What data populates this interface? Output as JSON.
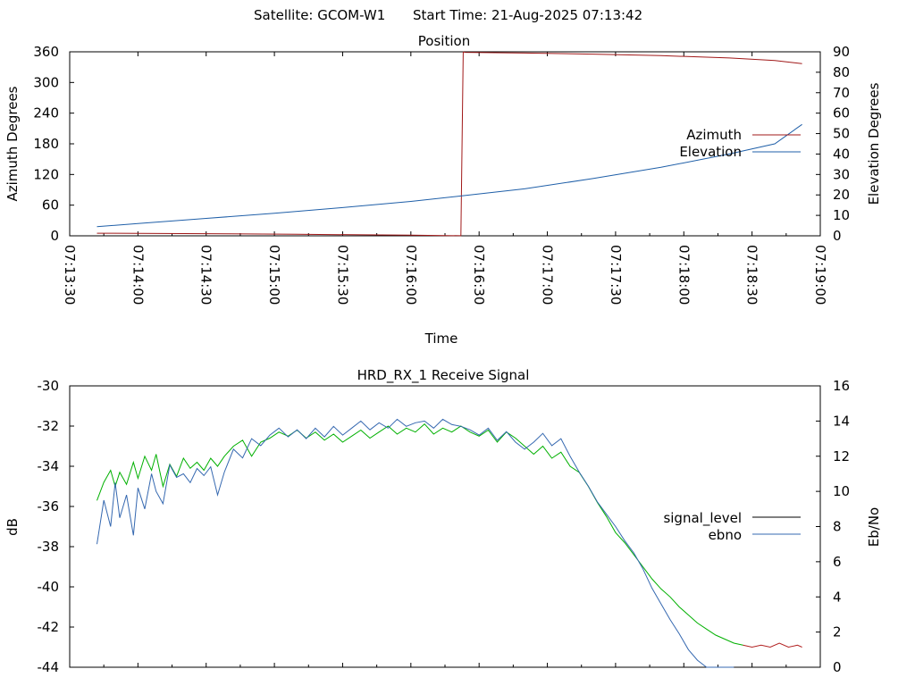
{
  "header": {
    "satellite": "Satellite: GCOM-W1",
    "start_time": "Start Time: 21-Aug-2025 07:13:42"
  },
  "colors": {
    "azimuth": "#a01818",
    "elevation": "#1f5fa8",
    "signal_level": "#b22222",
    "ebno_green": "#00b000",
    "ebno_blue": "#3568b0",
    "axis": "#000000"
  },
  "chart_data": [
    {
      "type": "line",
      "title": "Position",
      "xlabel": "Time",
      "ylabel": "Azimuth Degrees",
      "y2label": "Elevation Degrees",
      "x_unit": "time of day (seconds since 07:13:30)",
      "xlim": [
        0,
        330
      ],
      "ylim": [
        0,
        360
      ],
      "y2lim": [
        0,
        90
      ],
      "x_tick_labels": [
        "07:13:30",
        "07:14:00",
        "07:14:30",
        "07:15:00",
        "07:15:30",
        "07:16:00",
        "07:16:30",
        "07:17:00",
        "07:17:30",
        "07:18:00",
        "07:18:30",
        "07:19:00"
      ],
      "y_tick_labels": [
        "0",
        "60",
        "120",
        "180",
        "240",
        "300",
        "360"
      ],
      "y2_tick_labels": [
        "0",
        "10",
        "20",
        "30",
        "40",
        "50",
        "60",
        "70",
        "80",
        "90"
      ],
      "legend_position": "right",
      "series": [
        {
          "name": "Azimuth",
          "axis": "y",
          "x": [
            12,
            40,
            70,
            100,
            130,
            150,
            165,
            172,
            173,
            174,
            200,
            230,
            260,
            290,
            310,
            322
          ],
          "values": [
            5.0,
            4.5,
            3.8,
            3.0,
            2.0,
            1.2,
            0.5,
            0.1,
            359.5,
            359.0,
            357.5,
            355.5,
            352.5,
            348.0,
            343.0,
            337.0
          ]
        },
        {
          "name": "Elevation",
          "axis": "y2",
          "x": [
            12,
            30,
            60,
            90,
            120,
            150,
            172,
            200,
            230,
            260,
            290,
            310,
            322
          ],
          "values": [
            4.5,
            6.0,
            8.5,
            11.0,
            13.8,
            16.8,
            19.5,
            23.0,
            28.0,
            33.5,
            40.0,
            45.0,
            54.5
          ]
        }
      ]
    },
    {
      "type": "line",
      "title": "HRD_RX_1 Receive Signal",
      "ylabel": "dB",
      "y2label": "Eb/No",
      "xlim": [
        0,
        330
      ],
      "ylim": [
        -44,
        -30
      ],
      "y2lim": [
        0,
        16
      ],
      "y_tick_labels": [
        "-30",
        "-32",
        "-34",
        "-36",
        "-38",
        "-40",
        "-42",
        "-44"
      ],
      "y2_tick_labels": [
        "0",
        "2",
        "4",
        "6",
        "8",
        "10",
        "12",
        "14",
        "16"
      ],
      "legend_position": "right",
      "series": [
        {
          "name": "signal_level",
          "axis": "y",
          "x": [
            12,
            15,
            18,
            20,
            22,
            25,
            28,
            30,
            33,
            36,
            38,
            41,
            44,
            47,
            50,
            53,
            56,
            59,
            62,
            65,
            68,
            72,
            76,
            80,
            84,
            88,
            92,
            96,
            100,
            104,
            108,
            112,
            116,
            120,
            124,
            128,
            132,
            136,
            140,
            144,
            148,
            152,
            156,
            160,
            164,
            168,
            172,
            176,
            180,
            184,
            188,
            192,
            196,
            200,
            204,
            208,
            212,
            216,
            220,
            224,
            228,
            232,
            236,
            240,
            244,
            248,
            252,
            256,
            260,
            264,
            268,
            272,
            276,
            280,
            284,
            288,
            292,
            296,
            300,
            304,
            308,
            312,
            316,
            320,
            322
          ],
          "values": [
            -35.7,
            -34.8,
            -34.2,
            -35.0,
            -34.3,
            -34.9,
            -33.8,
            -34.6,
            -33.5,
            -34.2,
            -33.4,
            -35.0,
            -33.9,
            -34.5,
            -33.6,
            -34.1,
            -33.8,
            -34.2,
            -33.6,
            -34.0,
            -33.5,
            -33.0,
            -32.7,
            -33.5,
            -32.8,
            -32.6,
            -32.3,
            -32.5,
            -32.2,
            -32.6,
            -32.3,
            -32.7,
            -32.4,
            -32.8,
            -32.5,
            -32.2,
            -32.6,
            -32.3,
            -32.0,
            -32.4,
            -32.1,
            -32.3,
            -31.9,
            -32.4,
            -32.1,
            -32.3,
            -32.0,
            -32.3,
            -32.5,
            -32.2,
            -32.8,
            -32.3,
            -32.6,
            -33.0,
            -33.4,
            -33.0,
            -33.6,
            -33.3,
            -34.0,
            -34.3,
            -35.0,
            -35.8,
            -36.5,
            -37.3,
            -37.8,
            -38.4,
            -39.0,
            -39.6,
            -40.1,
            -40.5,
            -41.0,
            -41.4,
            -41.8,
            -42.1,
            -42.4,
            -42.6,
            -42.8,
            -42.9,
            -43.0,
            -42.9,
            -43.0,
            -42.8,
            -43.0,
            -42.9,
            -43.0
          ]
        },
        {
          "name": "ebno",
          "axis": "y2",
          "x": [
            12,
            15,
            18,
            20,
            22,
            25,
            28,
            30,
            33,
            36,
            38,
            41,
            44,
            47,
            50,
            53,
            56,
            59,
            62,
            65,
            68,
            72,
            76,
            80,
            84,
            88,
            92,
            96,
            100,
            104,
            108,
            112,
            116,
            120,
            124,
            128,
            132,
            136,
            140,
            144,
            148,
            152,
            156,
            160,
            164,
            168,
            172,
            176,
            180,
            184,
            188,
            192,
            196,
            200,
            204,
            208,
            212,
            216,
            220,
            224,
            228,
            232,
            236,
            240,
            244,
            248,
            252,
            256,
            260,
            264,
            268,
            272,
            276,
            280,
            284,
            288,
            292
          ],
          "values": [
            7.0,
            9.5,
            8.0,
            10.5,
            8.5,
            9.8,
            7.5,
            10.2,
            9.0,
            11.0,
            10.0,
            9.3,
            11.5,
            10.8,
            11.0,
            10.5,
            11.3,
            10.9,
            11.4,
            9.8,
            11.1,
            12.4,
            11.9,
            13.0,
            12.6,
            13.2,
            13.6,
            13.1,
            13.5,
            13.0,
            13.6,
            13.1,
            13.7,
            13.2,
            13.6,
            14.0,
            13.5,
            13.9,
            13.6,
            14.1,
            13.7,
            13.9,
            14.0,
            13.6,
            14.1,
            13.8,
            13.7,
            13.5,
            13.2,
            13.6,
            12.9,
            13.4,
            12.8,
            12.4,
            12.8,
            13.3,
            12.6,
            13.0,
            12.0,
            11.1,
            10.3,
            9.4,
            8.7,
            8.0,
            7.2,
            6.5,
            5.6,
            4.5,
            3.6,
            2.7,
            1.9,
            1.0,
            0.4,
            0.0,
            -0.3,
            -0.6,
            -0.9
          ]
        }
      ]
    }
  ]
}
